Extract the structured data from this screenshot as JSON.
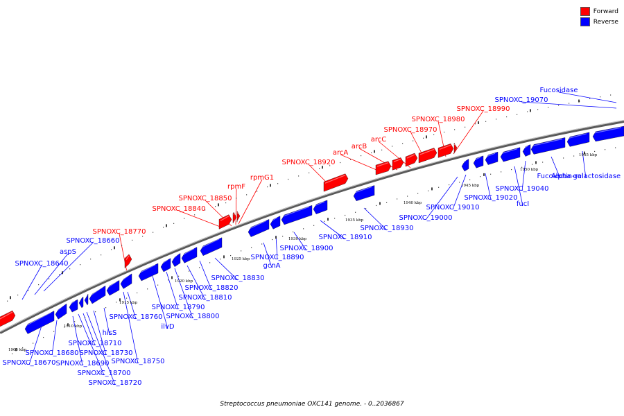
{
  "caption": "Streptococcus pneumoniae OXC141 genome. - 0..2036867",
  "legend": [
    {
      "label": "Forward",
      "color": "#ff0000"
    },
    {
      "label": "Reverse",
      "color": "#0000ff"
    }
  ],
  "colors": {
    "forward": "#ff0000",
    "reverse": "#0000ff",
    "backbone": "#7a7a7a"
  },
  "kbp_ticks": [
    "1905 kbp",
    "1910 kbp",
    "1915 kbp",
    "1920 kbp",
    "1925 kbp",
    "1930 kbp",
    "1935 kbp",
    "1940 kbp",
    "1945 kbp",
    "1950 kbp",
    "1955 kbp"
  ],
  "forward_labels": [
    "SPNOXC_18770",
    "SPNOXC_18840",
    "SPNOXC_18850",
    "rpmF",
    "rpmG1",
    "SPNOXC_18920",
    "arcA",
    "arcB",
    "arcC",
    "SPNOXC_18970",
    "SPNOXC_18980",
    "SPNOXC_18990"
  ],
  "reverse_labels": [
    "SPNOXC_18640",
    "aspS",
    "SPNOXC_18660",
    "SPNOXC_18670",
    "SPNOXC_18680",
    "SPNOXC_18690",
    "SPNOXC_18700",
    "SPNOXC_18710",
    "SPNOXC_18720",
    "SPNOXC_18730",
    "hisS",
    "SPNOXC_18750",
    "SPNOXC_18760",
    "ilvD",
    "SPNOXC_18790",
    "SPNOXC_18800",
    "SPNOXC_18810",
    "SPNOXC_18820",
    "SPNOXC_18830",
    "gcnA",
    "SPNOXC_18890",
    "SPNOXC_18900",
    "SPNOXC_18910",
    "SPNOXC_18930",
    "SPNOXC_19000",
    "SPNOXC_19010",
    "SPNOXC_19020",
    "fucI",
    "SPNOXC_19040",
    "Fucolectin-rel",
    "Alpha galactosidase",
    "SPNOXC_19070",
    "Fucosidase"
  ]
}
